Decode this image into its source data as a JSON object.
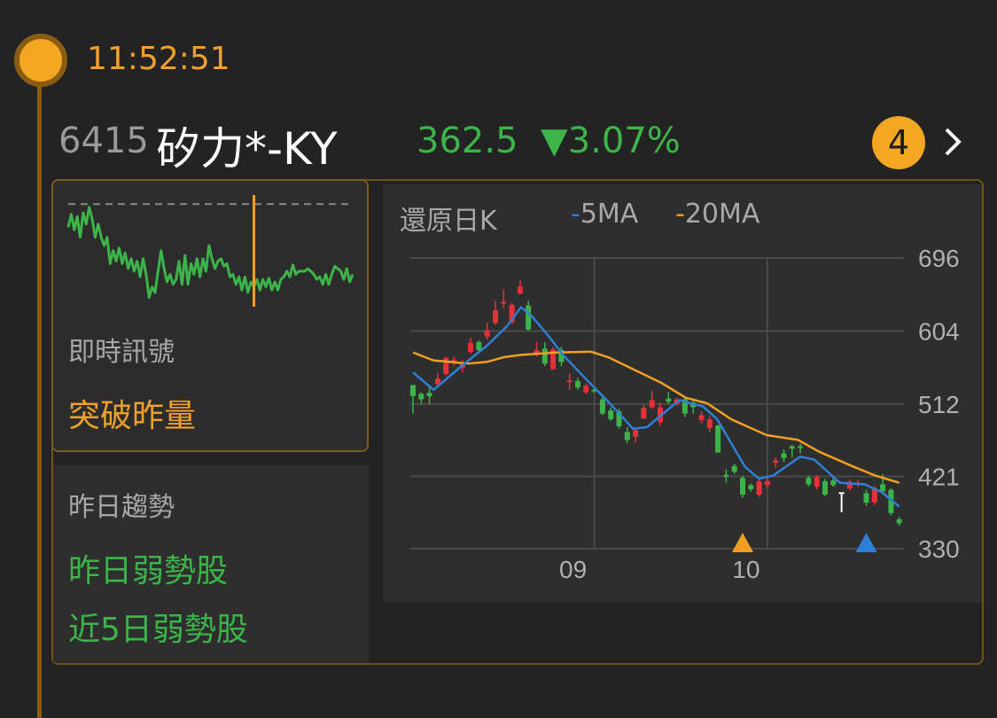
{
  "header": {
    "time": "11:52:51",
    "stock_code": "6415",
    "stock_name": "矽力*-KY",
    "price": "362.5",
    "change": "▼3.07%",
    "badge_count": "4"
  },
  "colors": {
    "up": "#e8303a",
    "down": "#3cb44a",
    "ma5": "#2f7fd6",
    "ma20": "#f0a020",
    "accent": "#f5a623"
  },
  "signal": {
    "label": "即時訊號",
    "value": "突破昨量",
    "sparkline": {
      "reference": 374.0,
      "cursor_index": 62,
      "values": [
        370.3,
        372.4,
        369.9,
        372,
        368.7,
        372.6,
        370.8,
        373.5,
        371.6,
        368.7,
        370.8,
        368.7,
        367.4,
        368.7,
        364.5,
        366.6,
        364.9,
        367,
        364.5,
        366.2,
        363.7,
        365.3,
        363.3,
        364.9,
        362.4,
        365.3,
        362.8,
        359.1,
        360.8,
        359.9,
        363.3,
        366.6,
        363.7,
        361.6,
        362.8,
        361.2,
        362,
        364.9,
        361.2,
        365.8,
        361.2,
        364.5,
        362.8,
        365.3,
        362.4,
        365.3,
        363.3,
        367.4,
        365.3,
        363.7,
        364.9,
        365.3,
        364.1,
        364.5,
        362.4,
        362.8,
        361.2,
        362.4,
        360.3,
        362.4,
        359.9,
        361.6,
        360.8,
        362,
        360.3,
        362,
        360.8,
        362.2,
        360.3,
        361.6,
        360.3,
        362,
        362.4,
        363.3,
        362.4,
        364.3,
        362.8,
        363.3,
        363.3,
        363.3,
        363.7,
        363.3,
        362.8,
        362,
        362.4,
        361.2,
        362.8,
        361.2,
        362.8,
        364.1,
        363.7,
        363.3,
        362,
        363.7,
        361.6,
        362.8
      ]
    }
  },
  "trend": {
    "label": "昨日趨勢",
    "items": [
      "昨日弱勢股",
      "近5日弱勢股"
    ]
  },
  "chart_data": {
    "type": "candlestick",
    "title": "還原日K",
    "legend": [
      {
        "name": "5MA",
        "color": "#2f7fd6"
      },
      {
        "name": "20MA",
        "color": "#f0a020"
      }
    ],
    "ylim": [
      330,
      696
    ],
    "yticks": [
      "696",
      "604",
      "512",
      "421",
      "330"
    ],
    "ytick_values": [
      696,
      604,
      512,
      421,
      330
    ],
    "xticks": [
      {
        "label": "09",
        "index": 22
      },
      {
        "label": "10",
        "index": 43
      }
    ],
    "grid": true,
    "candles": [
      [
        536,
        536,
        500,
        522
      ],
      [
        525,
        527,
        512,
        518
      ],
      [
        526,
        536,
        512,
        522
      ],
      [
        537,
        551,
        533,
        544
      ],
      [
        550,
        572,
        548,
        570
      ],
      [
        564,
        572,
        560,
        568
      ],
      [
        557,
        568,
        552,
        562
      ],
      [
        578,
        595,
        575,
        589
      ],
      [
        590,
        592,
        578,
        580
      ],
      [
        597,
        615,
        593,
        605
      ],
      [
        614,
        642,
        612,
        630
      ],
      [
        640,
        656,
        632,
        641
      ],
      [
        615,
        639,
        613,
        637
      ],
      [
        651,
        668,
        650,
        660
      ],
      [
        636,
        642,
        604,
        606
      ],
      [
        574,
        590,
        572,
        580
      ],
      [
        582,
        590,
        560,
        563
      ],
      [
        556,
        584,
        555,
        581
      ],
      [
        580,
        584,
        560,
        565
      ],
      [
        541,
        551,
        530,
        542
      ],
      [
        541,
        545,
        530,
        533
      ],
      [
        527,
        538,
        525,
        535
      ],
      [
        530,
        534,
        526,
        528
      ],
      [
        518,
        522,
        498,
        500
      ],
      [
        504,
        508,
        491,
        493
      ],
      [
        503,
        506,
        481,
        484
      ],
      [
        477,
        483,
        463,
        467
      ],
      [
        471,
        482,
        464,
        479
      ],
      [
        494,
        511,
        493,
        507
      ],
      [
        508,
        529,
        506,
        517
      ],
      [
        489,
        514,
        485,
        508
      ],
      [
        519,
        527,
        512,
        515
      ],
      [
        512,
        520,
        510,
        518
      ],
      [
        518,
        521,
        496,
        500
      ],
      [
        514,
        519,
        500,
        508
      ],
      [
        492,
        503,
        488,
        498
      ],
      [
        482,
        497,
        477,
        493
      ],
      [
        485,
        486,
        451,
        451
      ],
      [
        423,
        430,
        413,
        421
      ],
      [
        434,
        437,
        424,
        427
      ],
      [
        419,
        422,
        394,
        398
      ],
      [
        410,
        412,
        402,
        405
      ],
      [
        398,
        417,
        395,
        415
      ],
      [
        410,
        419,
        407,
        415
      ],
      [
        438,
        445,
        432,
        441
      ],
      [
        450,
        455,
        439,
        444
      ],
      [
        459,
        461,
        445,
        456
      ],
      [
        459,
        462,
        450,
        457
      ],
      [
        419,
        422,
        408,
        411
      ],
      [
        408,
        423,
        405,
        420
      ],
      [
        415,
        418,
        396,
        398
      ],
      [
        416,
        421,
        408,
        410
      ],
      null,
      [
        406,
        417,
        403,
        414
      ],
      [
        411,
        417,
        408,
        413
      ],
      [
        400,
        404,
        384,
        388
      ],
      [
        388,
        409,
        385,
        406
      ],
      [
        411,
        424,
        398,
        402
      ],
      [
        404,
        406,
        372,
        375
      ],
      [
        367,
        370,
        359,
        362
      ]
    ],
    "ma5": [
      [
        0,
        552
      ],
      [
        2.5,
        530
      ],
      [
        5.9,
        560
      ],
      [
        8.9,
        585
      ],
      [
        11.4,
        610
      ],
      [
        13.1,
        634
      ],
      [
        14.4,
        623
      ],
      [
        16.5,
        597
      ],
      [
        18.2,
        574
      ],
      [
        21.6,
        537
      ],
      [
        23.7,
        515
      ],
      [
        26.7,
        481
      ],
      [
        28.4,
        483
      ],
      [
        32.3,
        517
      ],
      [
        35.2,
        509
      ],
      [
        36.9,
        493
      ],
      [
        40.3,
        433
      ],
      [
        42,
        418
      ],
      [
        43.7,
        422
      ],
      [
        47,
        446
      ],
      [
        48.7,
        442
      ],
      [
        51.8,
        413
      ],
      [
        54.8,
        411
      ],
      [
        56.9,
        401
      ],
      [
        59,
        383
      ]
    ],
    "ma20": [
      [
        0,
        577
      ],
      [
        2.5,
        567
      ],
      [
        6.7,
        563
      ],
      [
        8.9,
        565
      ],
      [
        11,
        571
      ],
      [
        13.1,
        574
      ],
      [
        17.4,
        577
      ],
      [
        21.6,
        578
      ],
      [
        23.7,
        571
      ],
      [
        26.7,
        556
      ],
      [
        30.1,
        539
      ],
      [
        33.1,
        520
      ],
      [
        35.7,
        513
      ],
      [
        38.6,
        493
      ],
      [
        42.9,
        473
      ],
      [
        46.7,
        467
      ],
      [
        49.3,
        452
      ],
      [
        53.5,
        433
      ],
      [
        56.1,
        422
      ],
      [
        59,
        413
      ]
    ],
    "markers": [
      {
        "type": "buy-signal",
        "index": 40,
        "color": "#f0a020"
      },
      {
        "type": "sell-signal",
        "index": 55,
        "color": "#2f7fd6"
      },
      {
        "type": "pin",
        "index": 52,
        "price_low": 376,
        "price_high": 400,
        "color": "#ffffff"
      }
    ]
  }
}
